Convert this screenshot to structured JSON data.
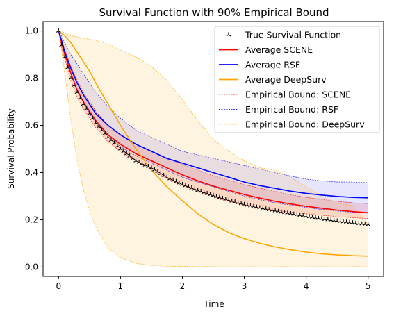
{
  "chart_data": {
    "type": "line",
    "title": "Survival Function with 90% Empirical Bound",
    "xlabel": "Time",
    "ylabel": "Survival Probability",
    "xlim": [
      -0.25,
      5.25
    ],
    "ylim": [
      -0.04,
      1.04
    ],
    "xticks": [
      "0",
      "1",
      "2",
      "3",
      "4",
      "5"
    ],
    "yticks": [
      "0.0",
      "0.2",
      "0.4",
      "0.6",
      "0.8",
      "1.0"
    ],
    "grid": false,
    "legend_position": "upper-right",
    "x": [
      0,
      0.05,
      0.1,
      0.2,
      0.3,
      0.4,
      0.5,
      0.6,
      0.8,
      1.0,
      1.25,
      1.5,
      1.75,
      2.0,
      2.25,
      2.5,
      2.75,
      3.0,
      3.25,
      3.5,
      3.75,
      4.0,
      4.25,
      4.5,
      4.75,
      5.0
    ],
    "series": [
      {
        "name": "True Survival Function",
        "style": "markers",
        "color": "#000000",
        "values": [
          1.0,
          0.94,
          0.89,
          0.8,
          0.74,
          0.69,
          0.65,
          0.61,
          0.55,
          0.5,
          0.45,
          0.42,
          0.38,
          0.35,
          0.325,
          0.303,
          0.283,
          0.265,
          0.251,
          0.238,
          0.226,
          0.215,
          0.204,
          0.195,
          0.187,
          0.18
        ]
      },
      {
        "name": "Average SCENE",
        "style": "line",
        "color": "#ff0000",
        "values": [
          1.0,
          0.95,
          0.9,
          0.82,
          0.75,
          0.7,
          0.66,
          0.62,
          0.56,
          0.52,
          0.48,
          0.45,
          0.42,
          0.39,
          0.365,
          0.343,
          0.325,
          0.307,
          0.292,
          0.278,
          0.267,
          0.257,
          0.249,
          0.241,
          0.235,
          0.23
        ]
      },
      {
        "name": "Average RSF",
        "style": "line",
        "color": "#0000ff",
        "values": [
          1.0,
          0.96,
          0.91,
          0.84,
          0.78,
          0.73,
          0.69,
          0.65,
          0.6,
          0.56,
          0.52,
          0.49,
          0.46,
          0.44,
          0.42,
          0.4,
          0.38,
          0.36,
          0.345,
          0.333,
          0.321,
          0.312,
          0.305,
          0.299,
          0.295,
          0.293
        ]
      },
      {
        "name": "Average DeepSurv",
        "style": "line",
        "color": "#ffa500",
        "values": [
          1.0,
          0.99,
          0.98,
          0.95,
          0.91,
          0.87,
          0.83,
          0.78,
          0.69,
          0.6,
          0.5,
          0.41,
          0.34,
          0.28,
          0.225,
          0.18,
          0.145,
          0.12,
          0.1,
          0.085,
          0.073,
          0.063,
          0.056,
          0.051,
          0.048,
          0.046
        ]
      },
      {
        "name": "Empirical Bound: SCENE",
        "style": "band",
        "color": "#ff0000",
        "lower": [
          1.0,
          0.93,
          0.88,
          0.79,
          0.72,
          0.67,
          0.63,
          0.59,
          0.53,
          0.49,
          0.45,
          0.41,
          0.375,
          0.345,
          0.32,
          0.297,
          0.278,
          0.262,
          0.25,
          0.24,
          0.232,
          0.225,
          0.219,
          0.213,
          0.209,
          0.205
        ],
        "upper": [
          1.0,
          0.96,
          0.92,
          0.85,
          0.79,
          0.74,
          0.7,
          0.66,
          0.6,
          0.56,
          0.52,
          0.49,
          0.46,
          0.435,
          0.41,
          0.387,
          0.367,
          0.349,
          0.334,
          0.32,
          0.306,
          0.295,
          0.286,
          0.278,
          0.272,
          0.268
        ]
      },
      {
        "name": "Empirical Bound: RSF",
        "style": "band",
        "color": "#0000ff",
        "lower": [
          1.0,
          0.95,
          0.9,
          0.82,
          0.75,
          0.7,
          0.65,
          0.61,
          0.55,
          0.51,
          0.47,
          0.44,
          0.41,
          0.38,
          0.36,
          0.34,
          0.32,
          0.3,
          0.285,
          0.272,
          0.262,
          0.252,
          0.244,
          0.237,
          0.232,
          0.228
        ],
        "upper": [
          1.0,
          0.98,
          0.95,
          0.9,
          0.86,
          0.82,
          0.78,
          0.74,
          0.68,
          0.63,
          0.58,
          0.55,
          0.52,
          0.49,
          0.475,
          0.46,
          0.445,
          0.43,
          0.415,
          0.4,
          0.385,
          0.372,
          0.365,
          0.36,
          0.36,
          0.357
        ]
      },
      {
        "name": "Empirical Bound: DeepSurv",
        "style": "band",
        "color": "#ffa500",
        "lower": [
          1.0,
          0.92,
          0.82,
          0.62,
          0.45,
          0.33,
          0.24,
          0.17,
          0.08,
          0.04,
          0.015,
          0.006,
          0.003,
          0.002,
          0.002,
          0.001,
          0.001,
          0.001,
          0.001,
          0.001,
          0.001,
          0.001,
          0.001,
          0.001,
          0.001,
          0.001
        ],
        "upper": [
          1.0,
          1.0,
          0.99,
          0.98,
          0.975,
          0.97,
          0.965,
          0.96,
          0.945,
          0.92,
          0.89,
          0.85,
          0.79,
          0.71,
          0.62,
          0.54,
          0.49,
          0.45,
          0.42,
          0.41,
          0.38,
          0.34,
          0.3,
          0.27,
          0.26,
          0.18
        ]
      }
    ]
  }
}
